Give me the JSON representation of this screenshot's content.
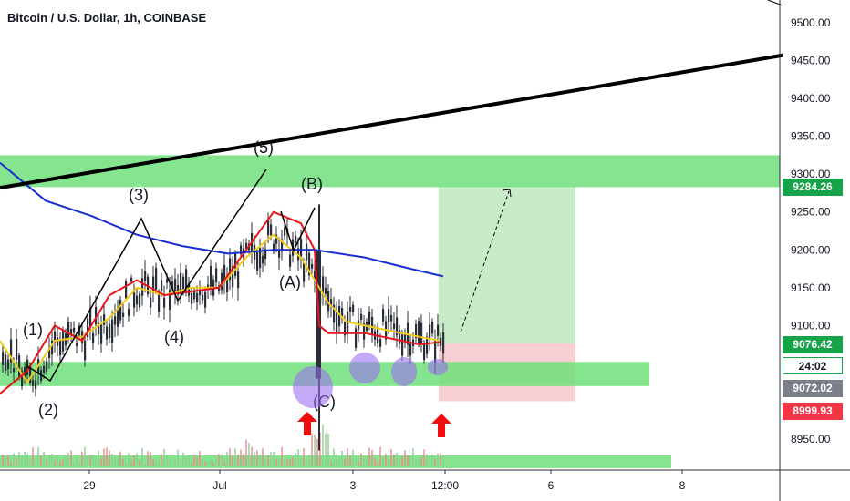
{
  "header": {
    "title": "Bitcoin / U.S. Dollar, 1h, COINBASE"
  },
  "price_tags": {
    "target": "9284.26",
    "last": "9076.42",
    "countdown": "24:02",
    "level": "9072.02",
    "stop": "8999.93"
  },
  "colors": {
    "zone": "#6fe07a",
    "ema_red": "#e8151b",
    "ema_yellow": "#f2cc1b",
    "ma_blue": "#1a2fd0",
    "trend": "#000000",
    "profit": "#c8ecc8",
    "loss": "#f7cfd2",
    "ellipse": "#9b6ff0",
    "arrow": "#f20d0d",
    "candle": "#2a2e39"
  },
  "chart_data": {
    "type": "line",
    "title": "Bitcoin / U.S. Dollar, 1h, COINBASE",
    "xlabel": "",
    "ylabel": "",
    "ylim": [
      8920,
      9530
    ],
    "yticks": [
      8950,
      9100,
      9150,
      9200,
      9250,
      9300,
      9350,
      9400,
      9450,
      9500
    ],
    "ytick_labels": [
      "8950.00",
      "9100.00",
      "9150.00",
      "9200.00",
      "9250.00",
      "9300.00",
      "9350.00",
      "9400.00",
      "9450.00",
      "9500.00"
    ],
    "xtick_labels": [
      "29",
      "Jul",
      "3",
      "12:00",
      "6",
      "8"
    ],
    "grid": false,
    "series": [
      {
        "key": "yellow",
        "x": [
          0,
          30,
          60,
          90,
          120,
          150,
          180,
          210,
          240,
          270,
          300,
          330,
          345,
          360,
          380,
          400,
          420,
          440,
          460,
          482
        ],
        "values": [
          9080,
          9025,
          9080,
          9085,
          9110,
          9150,
          9140,
          9150,
          9150,
          9190,
          9220,
          9190,
          9160,
          9130,
          9105,
          9100,
          9095,
          9090,
          9085,
          9080
        ]
      },
      {
        "key": "red",
        "x": [
          0,
          30,
          60,
          90,
          120,
          150,
          180,
          210,
          240,
          270,
          300,
          330,
          345,
          350,
          360,
          380,
          400,
          420,
          440,
          460,
          482
        ],
        "values": [
          9010,
          9040,
          9100,
          9080,
          9140,
          9160,
          9140,
          9145,
          9150,
          9200,
          9250,
          9235,
          9200,
          9100,
          9090,
          9090,
          9090,
          9085,
          9080,
          9075,
          9078
        ]
      },
      {
        "key": "blue",
        "x": [
          0,
          50,
          100,
          150,
          200,
          250,
          300,
          345,
          400,
          450,
          486
        ],
        "values": [
          9315,
          9265,
          9245,
          9220,
          9205,
          9195,
          9200,
          9200,
          9190,
          9175,
          9165
        ]
      }
    ],
    "zones": [
      [
        9283,
        9325
      ],
      [
        9020,
        9052
      ]
    ],
    "trendline": {
      "x": [
        0,
        858
      ],
      "y": [
        9282,
        9457
      ]
    },
    "wave_labels": [
      "(1)",
      "(2)",
      "(3)",
      "(4)",
      "(5)",
      "(A)",
      "(B)",
      "(C)"
    ],
    "position": {
      "entry": 9076.42,
      "target": 9284.26,
      "stop": 8999.93
    }
  }
}
